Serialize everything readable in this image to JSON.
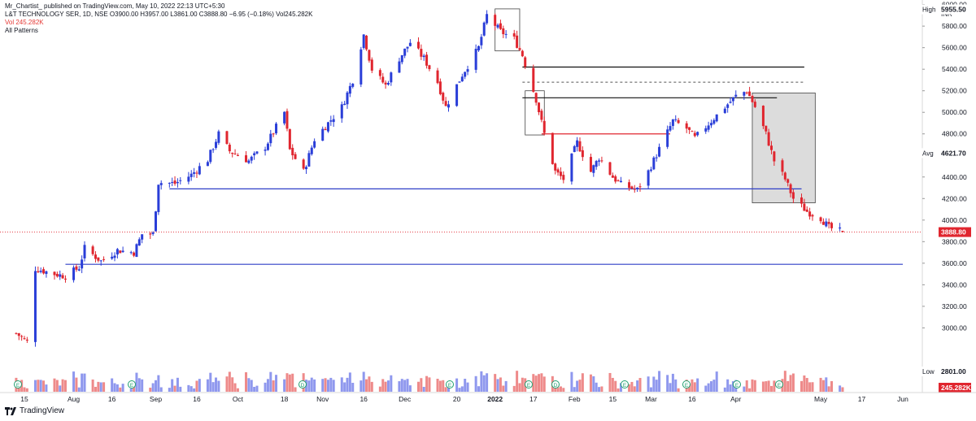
{
  "header": {
    "published": "Mr_Chartist_ published on TradingView.com, May 10, 2022 22:13 UTC+5:30",
    "symbol_line": "L&T TECHNOLOGY SER, 1D, NSE  O3900.00 H3957.00 L3861.00 C3888.80 −6.95 (−0.18%)  Vol245.282K",
    "vol_line": "Vol 245.282K",
    "patterns": "All Patterns"
  },
  "footer": {
    "brand": "TradingView"
  },
  "chart_data": {
    "type": "candlestick",
    "currency": "INR",
    "y_ticks": [
      3000,
      3200,
      3400,
      3600,
      3800,
      4000,
      4200,
      4400,
      4800,
      5000,
      5200,
      5400,
      5600,
      5800,
      6000
    ],
    "y_tick_labels": [
      "3000.00",
      "3200.00",
      "3400.00",
      "3600.00",
      "3800.00",
      "4000.00",
      "4200.00",
      "4400.00",
      "4800.00",
      "5000.00",
      "5200.00",
      "5400.00",
      "5600.00",
      "5800.00",
      "6000.00"
    ],
    "x_labels": [
      {
        "label": "15",
        "date": "2021-07-15"
      },
      {
        "label": "Aug",
        "date": "2021-08-02"
      },
      {
        "label": "16",
        "date": "2021-08-16"
      },
      {
        "label": "Sep",
        "date": "2021-09-01"
      },
      {
        "label": "16",
        "date": "2021-09-16"
      },
      {
        "label": "Oct",
        "date": "2021-10-01"
      },
      {
        "label": "18",
        "date": "2021-10-18"
      },
      {
        "label": "Nov",
        "date": "2021-11-01"
      },
      {
        "label": "16",
        "date": "2021-11-16"
      },
      {
        "label": "Dec",
        "date": "2021-12-01"
      },
      {
        "label": "20",
        "date": "2021-12-20"
      },
      {
        "label": "2022",
        "date": "2022-01-03",
        "bold": true
      },
      {
        "label": "17",
        "date": "2022-01-17"
      },
      {
        "label": "Feb",
        "date": "2022-02-01"
      },
      {
        "label": "15",
        "date": "2022-02-15"
      },
      {
        "label": "Mar",
        "date": "2022-03-01"
      },
      {
        "label": "16",
        "date": "2022-03-16"
      },
      {
        "label": "Apr",
        "date": "2022-04-01"
      },
      {
        "label": "May",
        "date": "2022-05-02"
      },
      {
        "label": "17",
        "date": "2022-05-17"
      },
      {
        "label": "Jun",
        "date": "2022-06-01"
      }
    ],
    "right_labels": {
      "high": {
        "label": "High",
        "value": "5955.50"
      },
      "avg": {
        "label": "Avg",
        "value": "4621.70"
      },
      "last": {
        "value": "3888.80"
      },
      "low": {
        "label": "Low",
        "value": "2801.00"
      },
      "volume": {
        "value": "245.282K"
      }
    },
    "colors": {
      "up": "#2a3ed8",
      "down": "#e0262f",
      "vol_up": "#8f98ee",
      "vol_down": "#ee8a8a",
      "support": "#2f3fc7",
      "resistance": "#111111",
      "highlight": "#bfbfbf"
    },
    "key_prices": [
      {
        "date": "2021-07-12",
        "price": 2950
      },
      {
        "date": "2021-07-16",
        "price": 2870
      },
      {
        "date": "2021-07-19",
        "price": 3550
      },
      {
        "date": "2021-07-26",
        "price": 3500
      },
      {
        "date": "2021-07-30",
        "price": 3480
      },
      {
        "date": "2021-08-04",
        "price": 3560
      },
      {
        "date": "2021-08-06",
        "price": 3740
      },
      {
        "date": "2021-08-12",
        "price": 3620
      },
      {
        "date": "2021-08-18",
        "price": 3720
      },
      {
        "date": "2021-08-24",
        "price": 3700
      },
      {
        "date": "2021-08-27",
        "price": 3870
      },
      {
        "date": "2021-08-31",
        "price": 3870
      },
      {
        "date": "2021-09-02",
        "price": 4350
      },
      {
        "date": "2021-09-08",
        "price": 4340
      },
      {
        "date": "2021-09-14",
        "price": 4420
      },
      {
        "date": "2021-09-20",
        "price": 4560
      },
      {
        "date": "2021-09-24",
        "price": 4800
      },
      {
        "date": "2021-09-28",
        "price": 4640
      },
      {
        "date": "2021-10-05",
        "price": 4550
      },
      {
        "date": "2021-10-11",
        "price": 4680
      },
      {
        "date": "2021-10-18",
        "price": 5000
      },
      {
        "date": "2021-10-20",
        "price": 4650
      },
      {
        "date": "2021-10-25",
        "price": 4450
      },
      {
        "date": "2021-10-29",
        "price": 4750
      },
      {
        "date": "2021-11-08",
        "price": 5050
      },
      {
        "date": "2021-11-12",
        "price": 5300
      },
      {
        "date": "2021-11-16",
        "price": 5720
      },
      {
        "date": "2021-11-19",
        "price": 5400
      },
      {
        "date": "2021-11-24",
        "price": 5250
      },
      {
        "date": "2021-11-29",
        "price": 5500
      },
      {
        "date": "2021-12-03",
        "price": 5650
      },
      {
        "date": "2021-12-08",
        "price": 5500
      },
      {
        "date": "2021-12-13",
        "price": 5280
      },
      {
        "date": "2021-12-16",
        "price": 5050
      },
      {
        "date": "2021-12-22",
        "price": 5350
      },
      {
        "date": "2021-12-28",
        "price": 5600
      },
      {
        "date": "2021-12-31",
        "price": 5900
      },
      {
        "date": "2022-01-05",
        "price": 5750
      },
      {
        "date": "2022-01-10",
        "price": 5680
      },
      {
        "date": "2022-01-13",
        "price": 5530
      },
      {
        "date": "2022-01-18",
        "price": 5120
      },
      {
        "date": "2022-01-21",
        "price": 4800
      },
      {
        "date": "2022-01-25",
        "price": 4450
      },
      {
        "date": "2022-01-28",
        "price": 4380
      },
      {
        "date": "2022-02-02",
        "price": 4720
      },
      {
        "date": "2022-02-07",
        "price": 4450
      },
      {
        "date": "2022-02-10",
        "price": 4580
      },
      {
        "date": "2022-02-15",
        "price": 4400
      },
      {
        "date": "2022-02-18",
        "price": 4330
      },
      {
        "date": "2022-02-24",
        "price": 4280
      },
      {
        "date": "2022-02-28",
        "price": 4450
      },
      {
        "date": "2022-03-04",
        "price": 4660
      },
      {
        "date": "2022-03-09",
        "price": 4920
      },
      {
        "date": "2022-03-14",
        "price": 4850
      },
      {
        "date": "2022-03-17",
        "price": 4760
      },
      {
        "date": "2022-03-23",
        "price": 4920
      },
      {
        "date": "2022-03-28",
        "price": 5050
      },
      {
        "date": "2022-04-01",
        "price": 5150
      },
      {
        "date": "2022-04-05",
        "price": 5200
      },
      {
        "date": "2022-04-08",
        "price": 5050
      },
      {
        "date": "2022-04-12",
        "price": 4800
      },
      {
        "date": "2022-04-15",
        "price": 4550
      },
      {
        "date": "2022-04-19",
        "price": 4380
      },
      {
        "date": "2022-04-22",
        "price": 4200
      },
      {
        "date": "2022-04-27",
        "price": 4080
      },
      {
        "date": "2022-05-02",
        "price": 4020
      },
      {
        "date": "2022-05-05",
        "price": 3930
      },
      {
        "date": "2022-05-10",
        "price": 3889
      }
    ],
    "drawings": {
      "support_lines": [
        {
          "price": 4290,
          "from": "2021-09-06",
          "to": "2022-04-25"
        },
        {
          "price": 3590,
          "from": "2021-07-30",
          "to": "2022-06-01"
        }
      ],
      "resistance_lines": [
        {
          "price": 5420,
          "from": "2022-01-13",
          "to": "2022-04-26"
        },
        {
          "price": 5135,
          "from": "2022-01-13",
          "to": "2022-04-16"
        }
      ],
      "dashed_line": {
        "price": 5280,
        "from": "2022-01-13",
        "to": "2022-04-26"
      },
      "red_line": {
        "price": 4800,
        "from": "2022-01-20",
        "to": "2022-03-08"
      },
      "last_price_line": 3888.8
    },
    "volume_markers": [
      "E",
      "E",
      "D",
      "E",
      "E",
      "D",
      "E",
      "E",
      "E",
      "E"
    ]
  }
}
